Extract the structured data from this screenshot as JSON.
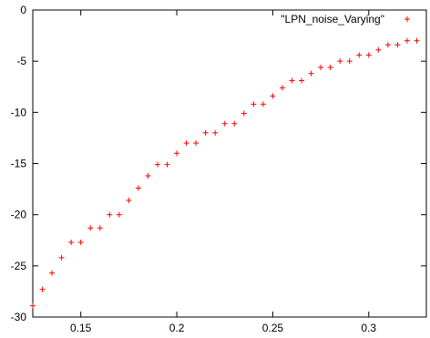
{
  "chart_data": {
    "type": "scatter",
    "title": "",
    "xlabel": "",
    "ylabel": "",
    "xlim": [
      0.125,
      0.33
    ],
    "ylim": [
      -30,
      0
    ],
    "x_ticks": [
      0.15,
      0.2,
      0.25,
      0.3
    ],
    "x_tick_labels": [
      "0.15",
      "0.2",
      "0.25",
      "0.3"
    ],
    "y_ticks": [
      0,
      -5,
      -10,
      -15,
      -20,
      -25,
      -30
    ],
    "y_tick_labels": [
      "0",
      "-5",
      "-10",
      "-15",
      "-20",
      "-25",
      "-30"
    ],
    "grid": false,
    "legend_position": "top-right",
    "marker": "+",
    "series": [
      {
        "name": "\"LPN_noise_Varying\"",
        "color": "#ff0000",
        "points": [
          [
            0.125,
            -28.9
          ],
          [
            0.13,
            -27.3
          ],
          [
            0.135,
            -25.7
          ],
          [
            0.14,
            -24.2
          ],
          [
            0.145,
            -22.7
          ],
          [
            0.15,
            -22.7
          ],
          [
            0.155,
            -21.3
          ],
          [
            0.16,
            -21.3
          ],
          [
            0.165,
            -20.0
          ],
          [
            0.17,
            -20.0
          ],
          [
            0.175,
            -18.6
          ],
          [
            0.18,
            -17.4
          ],
          [
            0.185,
            -16.2
          ],
          [
            0.19,
            -15.1
          ],
          [
            0.195,
            -15.1
          ],
          [
            0.2,
            -14.0
          ],
          [
            0.205,
            -13.0
          ],
          [
            0.21,
            -13.0
          ],
          [
            0.215,
            -12.0
          ],
          [
            0.22,
            -12.0
          ],
          [
            0.225,
            -11.1
          ],
          [
            0.23,
            -11.1
          ],
          [
            0.235,
            -10.1
          ],
          [
            0.24,
            -9.2
          ],
          [
            0.245,
            -9.2
          ],
          [
            0.25,
            -8.4
          ],
          [
            0.255,
            -7.6
          ],
          [
            0.26,
            -6.9
          ],
          [
            0.265,
            -6.9
          ],
          [
            0.27,
            -6.2
          ],
          [
            0.275,
            -5.6
          ],
          [
            0.28,
            -5.6
          ],
          [
            0.285,
            -5.0
          ],
          [
            0.29,
            -5.0
          ],
          [
            0.295,
            -4.4
          ],
          [
            0.3,
            -4.4
          ],
          [
            0.305,
            -3.9
          ],
          [
            0.31,
            -3.4
          ],
          [
            0.315,
            -3.4
          ],
          [
            0.32,
            -3.0
          ],
          [
            0.325,
            -3.0
          ]
        ]
      }
    ]
  }
}
